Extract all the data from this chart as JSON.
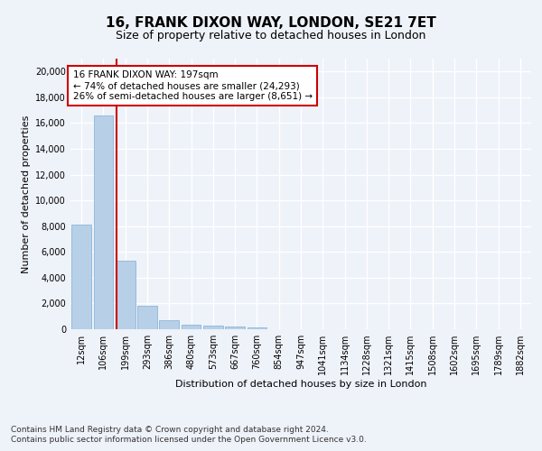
{
  "title1": "16, FRANK DIXON WAY, LONDON, SE21 7ET",
  "title2": "Size of property relative to detached houses in London",
  "xlabel": "Distribution of detached houses by size in London",
  "ylabel": "Number of detached properties",
  "bar_color": "#b8cfe8",
  "bar_edge_color": "#7aafd4",
  "vline_color": "#cc0000",
  "annotation_text": "16 FRANK DIXON WAY: 197sqm\n← 74% of detached houses are smaller (24,293)\n26% of semi-detached houses are larger (8,651) →",
  "annotation_box_color": "#ffffff",
  "annotation_box_edge": "#cc0000",
  "categories": [
    "12sqm",
    "106sqm",
    "199sqm",
    "293sqm",
    "386sqm",
    "480sqm",
    "573sqm",
    "667sqm",
    "760sqm",
    "854sqm",
    "947sqm",
    "1041sqm",
    "1134sqm",
    "1228sqm",
    "1321sqm",
    "1415sqm",
    "1508sqm",
    "1602sqm",
    "1695sqm",
    "1789sqm",
    "1882sqm"
  ],
  "values": [
    8100,
    16600,
    5300,
    1850,
    680,
    370,
    270,
    200,
    170,
    0,
    0,
    0,
    0,
    0,
    0,
    0,
    0,
    0,
    0,
    0,
    0
  ],
  "ylim": [
    0,
    21000
  ],
  "yticks": [
    0,
    2000,
    4000,
    6000,
    8000,
    10000,
    12000,
    14000,
    16000,
    18000,
    20000
  ],
  "footnote1": "Contains HM Land Registry data © Crown copyright and database right 2024.",
  "footnote2": "Contains public sector information licensed under the Open Government Licence v3.0.",
  "background_color": "#eef2f9",
  "plot_bg_color": "#eef2f9",
  "grid_color": "#ffffff",
  "title1_fontsize": 11,
  "title2_fontsize": 9,
  "annotation_fontsize": 7.5,
  "axis_label_fontsize": 8,
  "tick_fontsize": 7,
  "footnote_fontsize": 6.5
}
